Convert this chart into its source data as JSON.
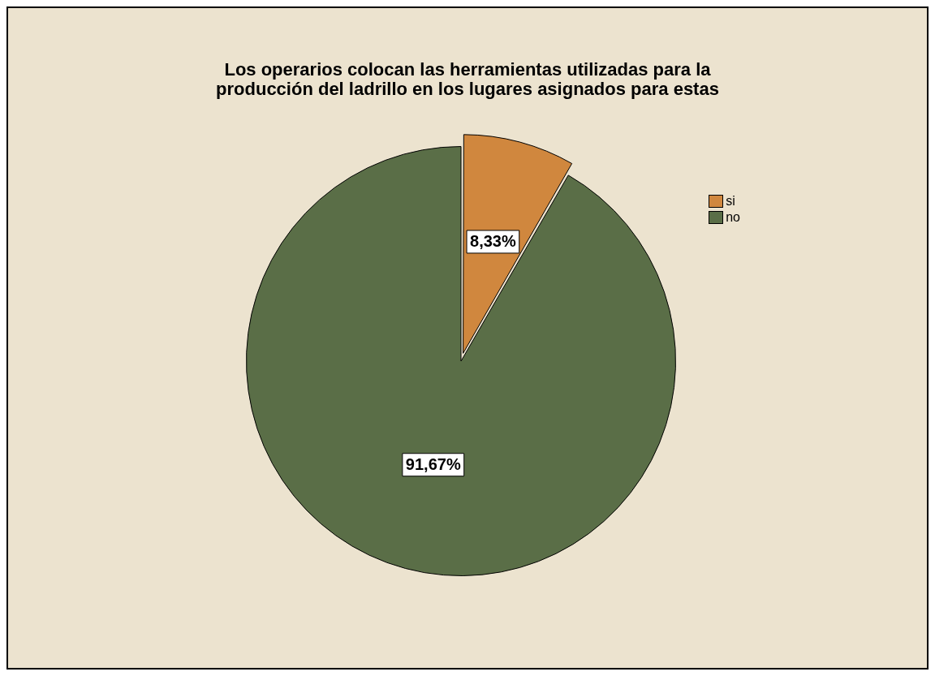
{
  "chart_data": {
    "type": "pie",
    "title": "Los operarios colocan las herramientas utilizadas para la producción del ladrillo en los lugares asignados para estas",
    "categories": [
      "si",
      "no"
    ],
    "values": [
      8.33,
      91.67
    ],
    "colors": [
      "#d0873e",
      "#5a6e47"
    ],
    "value_labels": [
      "8,33%",
      "91,67%"
    ],
    "legend": "top right"
  }
}
